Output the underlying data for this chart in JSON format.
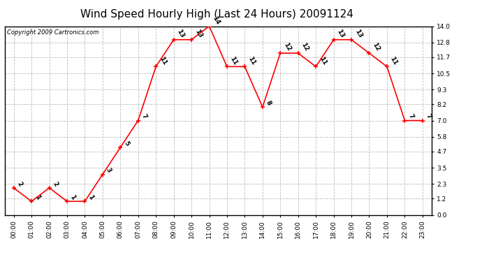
{
  "title": "Wind Speed Hourly High (Last 24 Hours) 20091124",
  "copyright_text": "Copyright 2009 Cartronics.com",
  "hours": [
    "00:00",
    "01:00",
    "02:00",
    "03:00",
    "04:00",
    "05:00",
    "06:00",
    "07:00",
    "08:00",
    "09:00",
    "10:00",
    "11:00",
    "12:00",
    "13:00",
    "14:00",
    "15:00",
    "16:00",
    "17:00",
    "18:00",
    "19:00",
    "20:00",
    "21:00",
    "22:00",
    "23:00"
  ],
  "values": [
    2,
    1,
    2,
    1,
    1,
    3,
    5,
    7,
    11,
    13,
    13,
    14,
    11,
    11,
    8,
    12,
    12,
    11,
    13,
    13,
    12,
    11,
    7,
    7
  ],
  "line_color": "#ff0000",
  "marker_color": "#ff0000",
  "background_color": "#ffffff",
  "grid_color": "#bbbbbb",
  "yticks": [
    0.0,
    1.2,
    2.3,
    3.5,
    4.7,
    5.8,
    7.0,
    8.2,
    9.3,
    10.5,
    11.7,
    12.8,
    14.0
  ],
  "ylim": [
    0.0,
    14.0
  ],
  "title_fontsize": 11,
  "annotation_fontsize": 6.5,
  "tick_fontsize": 6.5,
  "copyright_fontsize": 6
}
